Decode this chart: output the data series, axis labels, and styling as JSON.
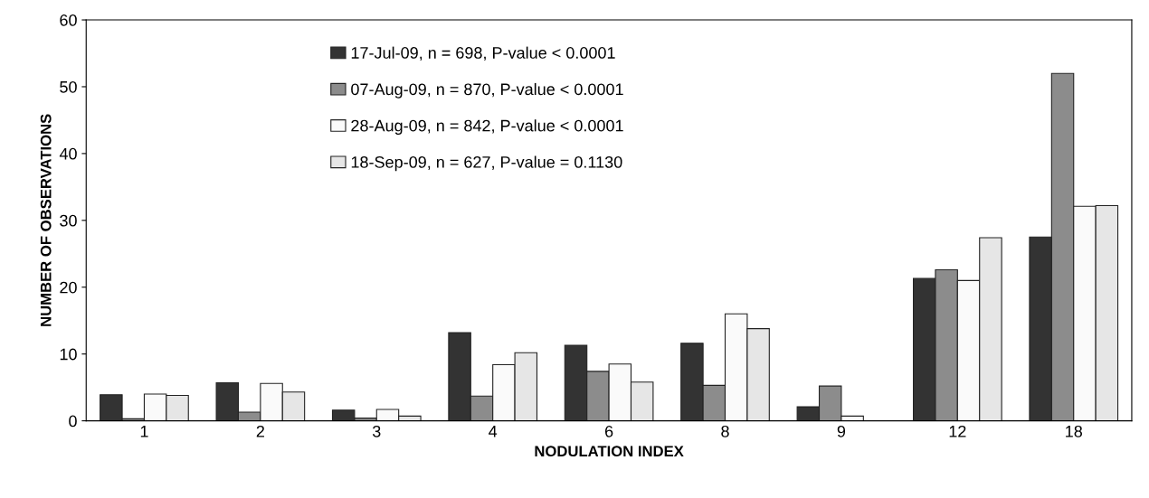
{
  "chart_data": {
    "type": "bar",
    "xlabel": "NODULATION INDEX",
    "ylabel": "NUMBER OF OBSERVATIONS",
    "categories": [
      "1",
      "2",
      "3",
      "4",
      "6",
      "8",
      "9",
      "12",
      "18"
    ],
    "series": [
      {
        "name": "17-Jul-09, n = 698, P-value < 0.0001",
        "color": "#333333",
        "values": [
          3.9,
          5.7,
          1.6,
          13.2,
          11.3,
          11.6,
          2.1,
          21.3,
          27.5
        ]
      },
      {
        "name": "07-Aug-09, n = 870, P-value < 0.0001",
        "color": "#8c8c8c",
        "values": [
          0.3,
          1.3,
          0.4,
          3.7,
          7.4,
          5.3,
          5.2,
          22.6,
          52.0
        ]
      },
      {
        "name": "28-Aug-09, n = 842, P-value < 0.0001",
        "color": "#fafafa",
        "values": [
          4.0,
          5.6,
          1.7,
          8.4,
          8.5,
          16.0,
          0.7,
          21.0,
          32.1
        ]
      },
      {
        "name": "18-Sep-09, n = 627, P-value = 0.1130",
        "color": "#e6e6e6",
        "values": [
          3.8,
          4.3,
          0.7,
          10.2,
          5.8,
          13.8,
          null,
          27.4,
          32.2
        ]
      }
    ],
    "ylim": [
      0,
      60
    ],
    "yticks": [
      0,
      10,
      20,
      30,
      40,
      50,
      60
    ],
    "grid": false,
    "legend": "top left"
  }
}
